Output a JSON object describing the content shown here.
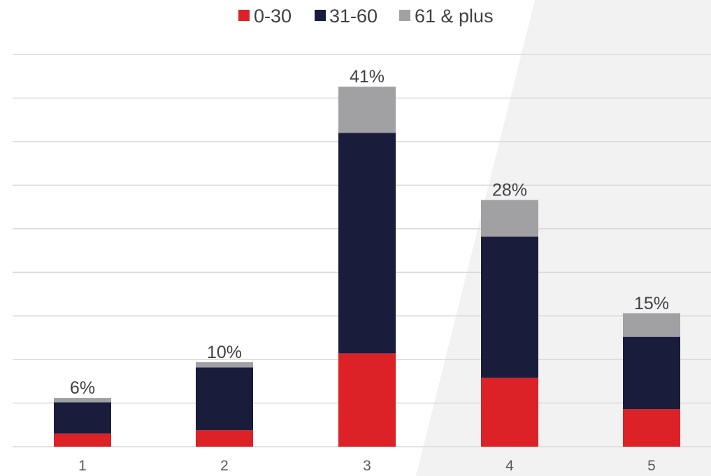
{
  "chart_data": {
    "type": "bar",
    "stacked": true,
    "categories": [
      "1",
      "2",
      "3",
      "4",
      "5"
    ],
    "series": [
      {
        "name": "0-30",
        "color": "#dc2127",
        "values": [
          1.5,
          1.9,
          10.7,
          7.9,
          4.3
        ]
      },
      {
        "name": "31-60",
        "color": "#1a1c3c",
        "values": [
          3.6,
          7.2,
          25.3,
          16.2,
          8.3
        ]
      },
      {
        "name": "61 & plus",
        "color": "#a1a1a3",
        "values": [
          0.5,
          0.6,
          5.3,
          4.2,
          2.7
        ]
      }
    ],
    "data_labels": [
      "6%",
      "10%",
      "41%",
      "28%",
      "15%"
    ],
    "ylim": [
      0,
      45
    ],
    "grid": true,
    "legend_position": "top-center",
    "title": "",
    "xlabel": "",
    "ylabel": ""
  },
  "background": {
    "panel_color": "#f2f2f2",
    "gridline_color": "#d9d9d9",
    "axis_color": "#d9d9d9"
  }
}
